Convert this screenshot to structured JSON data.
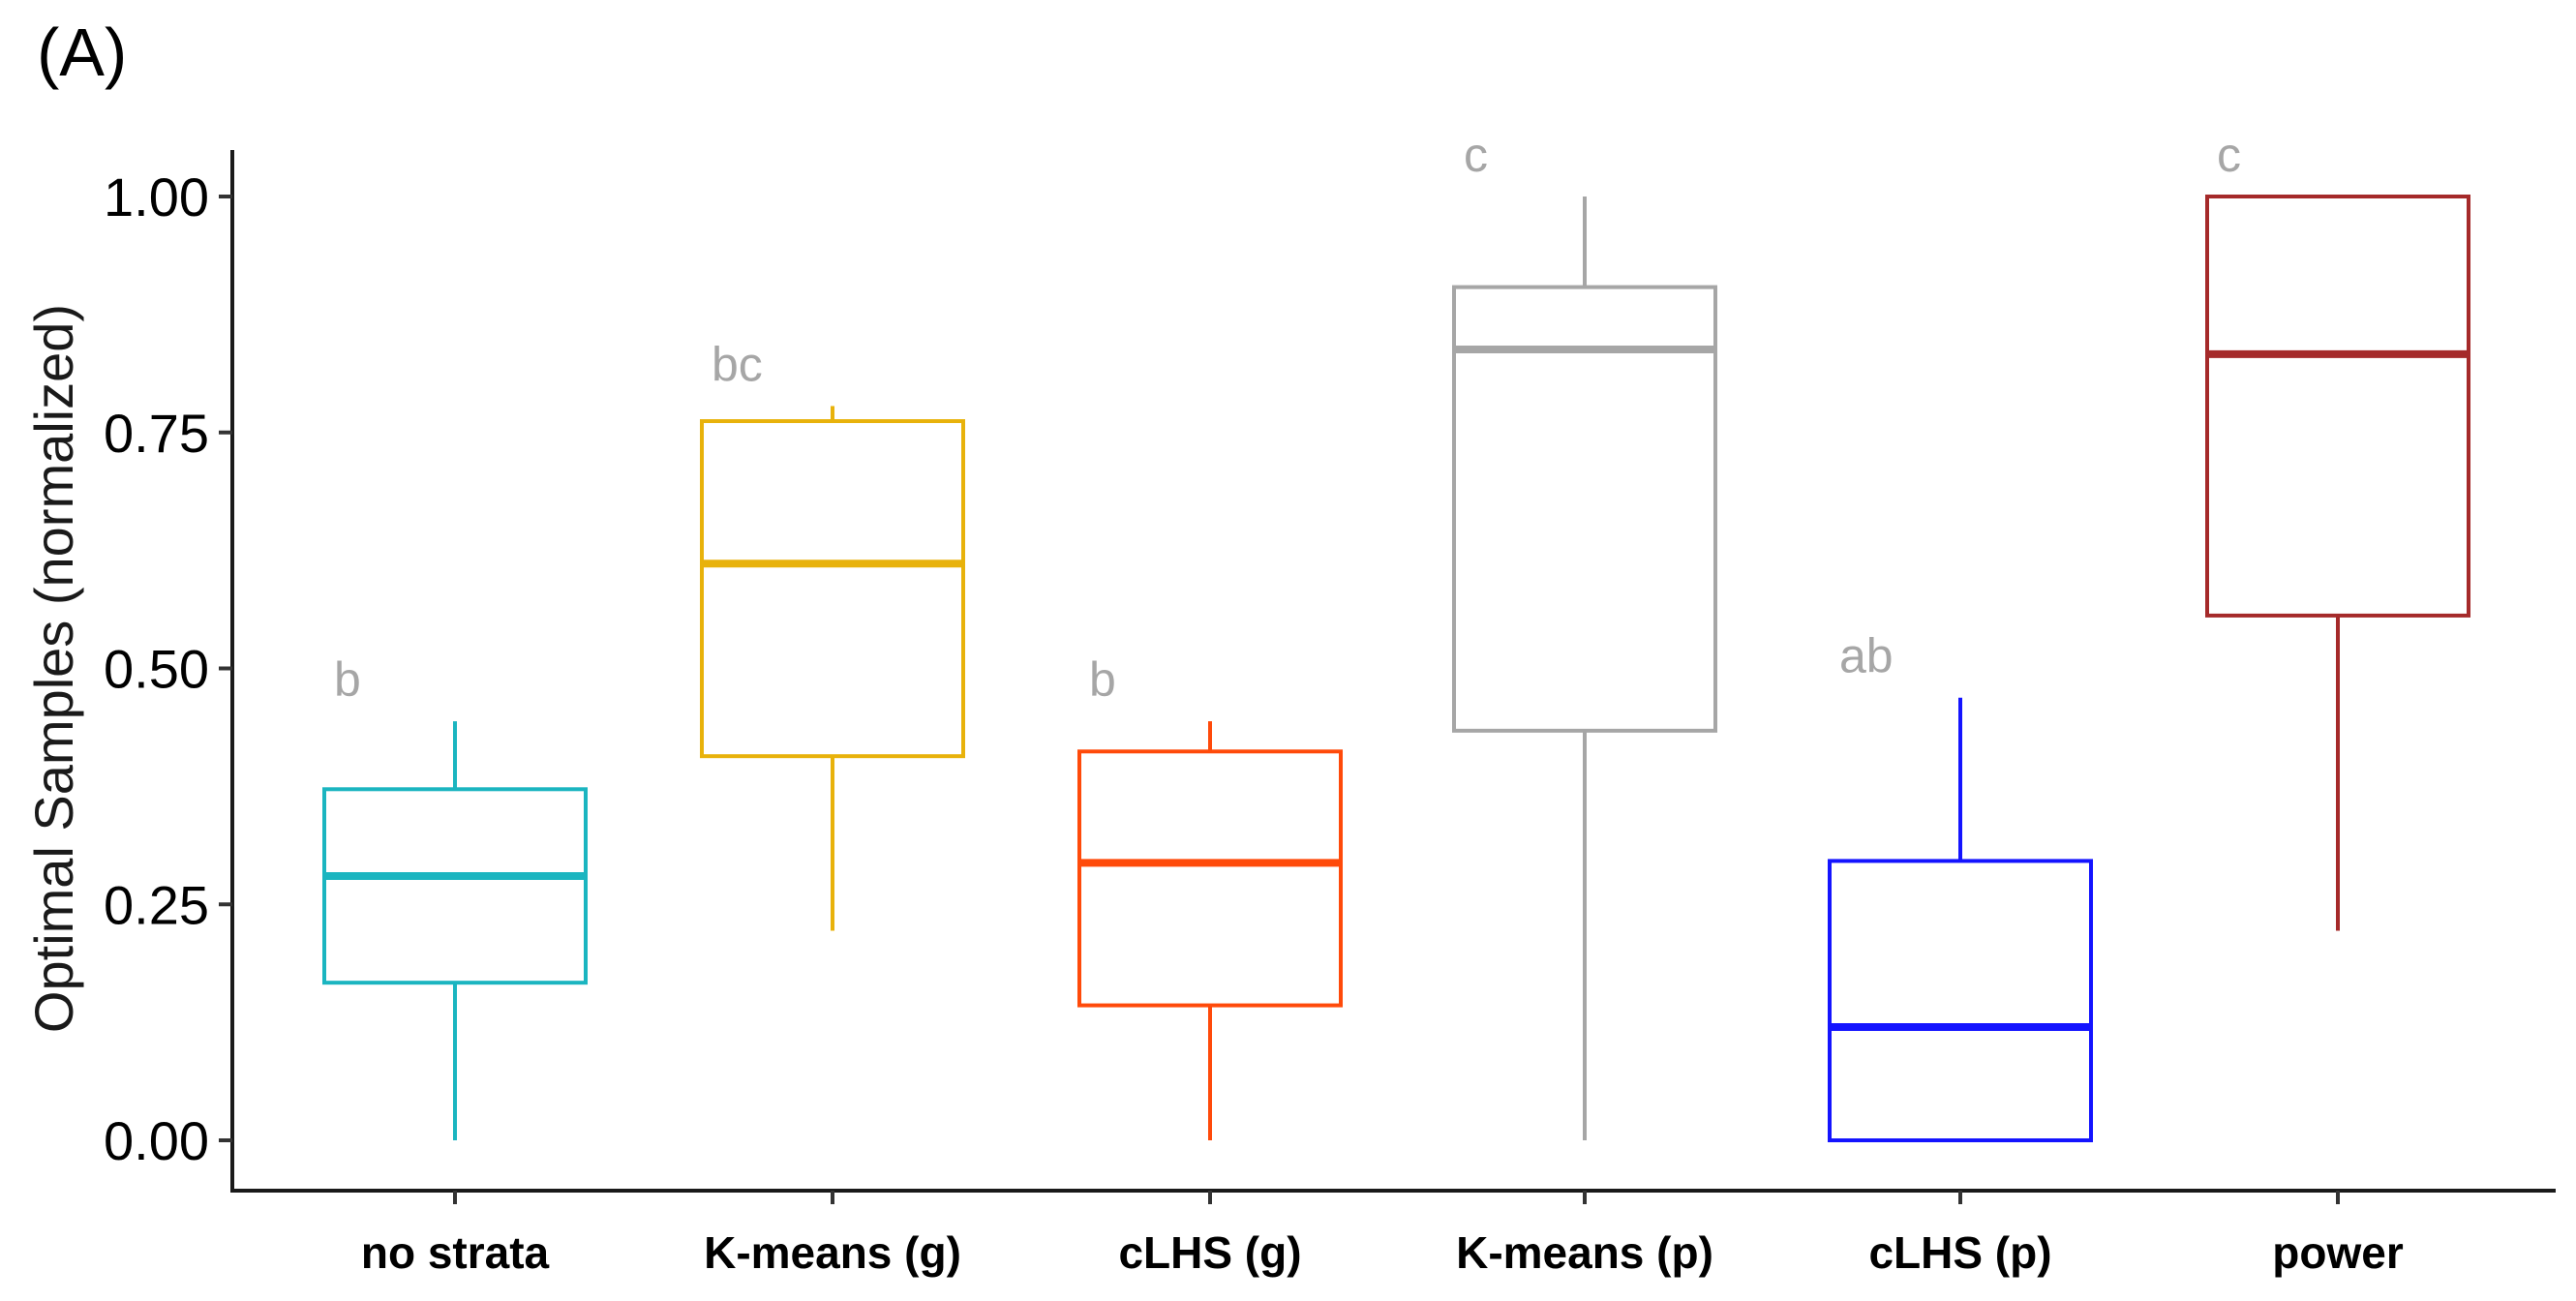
{
  "panel_label": "(A)",
  "chart_data": {
    "type": "box",
    "title": "",
    "xlabel": "",
    "ylabel": "Optimal Samples (normalized)",
    "ylim": [
      0,
      1.05
    ],
    "yticks": [
      0.0,
      0.25,
      0.5,
      0.75,
      1.0
    ],
    "ytick_labels": [
      "0.00",
      "0.25",
      "0.50",
      "0.75",
      "1.00"
    ],
    "grid": false,
    "legend": "none",
    "categories": [
      "no strata",
      "K-means (g)",
      "cLHS (g)",
      "K-means (p)",
      "cLHS (p)",
      "power"
    ],
    "series": [
      {
        "category": "no strata",
        "color": "#1bb5c0",
        "whisker_low": 0.0,
        "q1": 0.167,
        "median": 0.28,
        "q3": 0.372,
        "whisker_high": 0.444,
        "letter": "b"
      },
      {
        "category": "K-means (g)",
        "color": "#e8b20b",
        "whisker_low": 0.222,
        "q1": 0.407,
        "median": 0.611,
        "q3": 0.762,
        "whisker_high": 0.778,
        "letter": "bc"
      },
      {
        "category": "cLHS (g)",
        "color": "#ff4a0a",
        "whisker_low": 0.0,
        "q1": 0.143,
        "median": 0.294,
        "q3": 0.412,
        "whisker_high": 0.444,
        "letter": "b"
      },
      {
        "category": "K-means (p)",
        "color": "#a6a6a6",
        "whisker_low": 0.0,
        "q1": 0.434,
        "median": 0.838,
        "q3": 0.904,
        "whisker_high": 1.0,
        "letter": "c"
      },
      {
        "category": "cLHS (p)",
        "color": "#1414ff",
        "whisker_low": 0.0,
        "q1": 0.0,
        "median": 0.12,
        "q3": 0.296,
        "whisker_high": 0.469,
        "letter": "ab"
      },
      {
        "category": "power",
        "color": "#a52a2a",
        "whisker_low": 0.222,
        "q1": 0.556,
        "median": 0.833,
        "q3": 1.0,
        "whisker_high": 1.0,
        "letter": "c"
      }
    ]
  }
}
